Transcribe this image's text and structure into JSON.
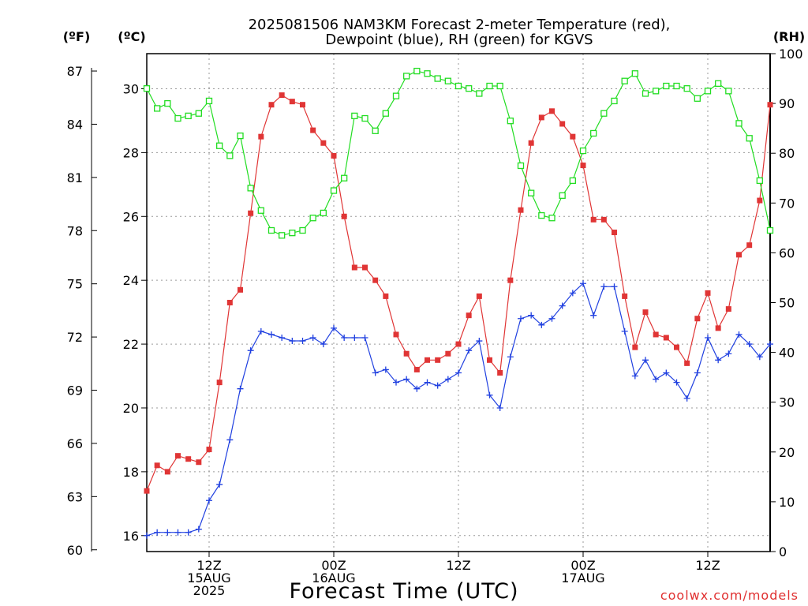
{
  "chart_data": {
    "type": "line",
    "title_line1": "2025081506 NAM3KM Forecast 2-meter Temperature (red),",
    "title_line2": "Dewpoint (blue), RH (green) for KGVS",
    "xlabel": "Forecast Time (UTC)",
    "unit_left_f": "(ºF)",
    "unit_left_c": "(ºC)",
    "unit_right": "(RH)",
    "credit": "coolwx.com/models",
    "y_c_ticks": [
      "16",
      "18",
      "20",
      "22",
      "24",
      "26",
      "28",
      "30"
    ],
    "y_f_ticks": [
      "60",
      "63",
      "66",
      "69",
      "72",
      "75",
      "78",
      "81",
      "84",
      "87"
    ],
    "y_rh_ticks": [
      "0",
      "10",
      "20",
      "30",
      "40",
      "50",
      "60",
      "70",
      "80",
      "90",
      "100"
    ],
    "ylim_c": [
      15.5,
      31.1
    ],
    "ylim_rh": [
      0,
      100
    ],
    "x_range_hours": [
      6,
      66
    ],
    "x_ticks": [
      {
        "hour": 12,
        "lines": [
          "12Z",
          "15AUG",
          "2025"
        ]
      },
      {
        "hour": 24,
        "lines": [
          "00Z",
          "16AUG"
        ]
      },
      {
        "hour": 36,
        "lines": [
          "12Z"
        ]
      },
      {
        "hour": 48,
        "lines": [
          "00Z",
          "17AUG"
        ]
      },
      {
        "hour": 60,
        "lines": [
          "12Z"
        ]
      }
    ],
    "hours": [
      6,
      7,
      8,
      9,
      10,
      11,
      12,
      13,
      14,
      15,
      16,
      17,
      18,
      19,
      20,
      21,
      22,
      23,
      24,
      25,
      26,
      27,
      28,
      29,
      30,
      31,
      32,
      33,
      34,
      35,
      36,
      37,
      38,
      39,
      40,
      41,
      42,
      43,
      44,
      45,
      46,
      47,
      48,
      49,
      50,
      51,
      52,
      53,
      54,
      55,
      56,
      57,
      58,
      59,
      60,
      61,
      62,
      63,
      64,
      65,
      66
    ],
    "series": [
      {
        "name": "Temperature",
        "color": "#e03535",
        "marker": "square-filled",
        "axis": "celsius",
        "values": [
          17.4,
          18.2,
          18.0,
          18.5,
          18.4,
          18.3,
          18.7,
          20.8,
          23.3,
          23.7,
          26.1,
          28.5,
          29.5,
          29.8,
          29.6,
          29.5,
          28.7,
          28.3,
          27.9,
          26.0,
          24.4,
          24.4,
          24.0,
          23.5,
          22.3,
          21.7,
          21.2,
          21.5,
          21.5,
          21.7,
          22.0,
          22.9,
          23.5,
          21.5,
          21.1,
          24.0,
          26.2,
          28.3,
          29.1,
          29.3,
          28.9,
          28.5,
          27.6,
          25.9,
          25.9,
          25.5,
          23.5,
          21.9,
          23.0,
          22.3,
          22.2,
          21.9,
          21.4,
          22.8,
          23.6,
          22.5,
          23.1,
          24.8,
          25.1,
          26.5,
          29.5
        ]
      },
      {
        "name": "Dewpoint",
        "color": "#2040e0",
        "marker": "plus",
        "axis": "celsius",
        "values": [
          16.0,
          16.1,
          16.1,
          16.1,
          16.1,
          16.2,
          17.1,
          17.6,
          19.0,
          20.6,
          21.8,
          22.4,
          22.3,
          22.2,
          22.1,
          22.1,
          22.2,
          22.0,
          22.5,
          22.2,
          22.2,
          22.2,
          21.1,
          21.2,
          20.8,
          20.9,
          20.6,
          20.8,
          20.7,
          20.9,
          21.1,
          21.8,
          22.1,
          20.4,
          20.0,
          21.6,
          22.8,
          22.9,
          22.6,
          22.8,
          23.2,
          23.6,
          23.9,
          22.9,
          23.8,
          23.8,
          22.4,
          21.0,
          21.5,
          20.9,
          21.1,
          20.8,
          20.3,
          21.1,
          22.2,
          21.5,
          21.7,
          22.3,
          22.0,
          21.6,
          22.0
        ]
      },
      {
        "name": "RH",
        "color": "#22dd22",
        "marker": "square-open",
        "axis": "rh",
        "values": [
          93,
          89,
          90,
          87,
          87.5,
          88,
          90.5,
          81.5,
          79.5,
          83.5,
          73,
          68.5,
          64.5,
          63.5,
          64,
          64.5,
          67,
          68,
          72.5,
          75,
          87.5,
          87,
          84.5,
          88,
          91.5,
          95.5,
          96.5,
          96,
          95,
          94.5,
          93.5,
          93,
          92,
          93.5,
          93.5,
          86.5,
          77.5,
          72,
          67.5,
          67,
          71.5,
          74.5,
          80.5,
          84,
          88,
          90.5,
          94.5,
          96,
          92,
          92.5,
          93.5,
          93.5,
          93,
          91,
          92.5,
          94,
          92.5,
          86,
          83,
          74.5,
          64.5
        ]
      }
    ]
  }
}
